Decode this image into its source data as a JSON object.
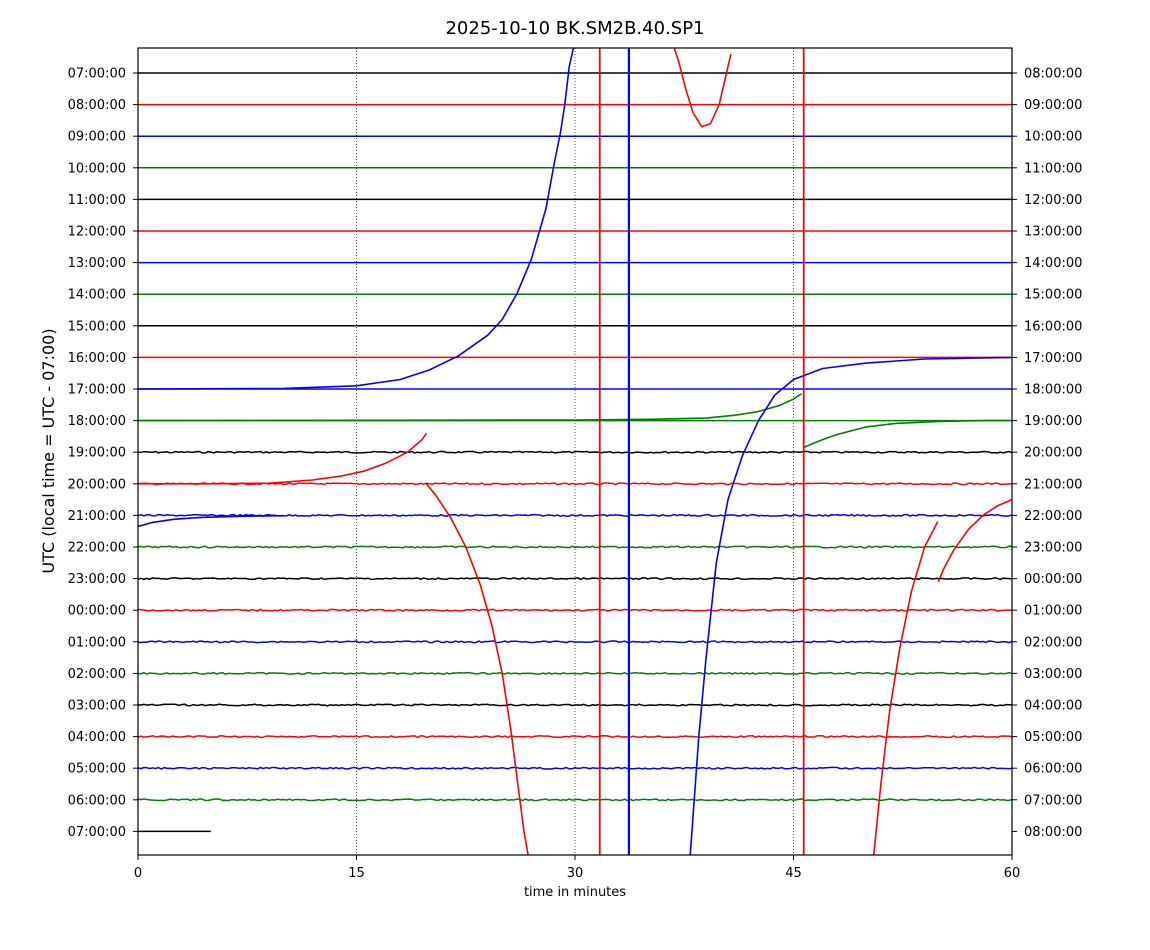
{
  "chart_data": {
    "type": "line",
    "title": "2025-10-10 BK.SM2B.40.SP1",
    "xlabel": "time in minutes",
    "ylabel": "UTC (local time = UTC - 07:00)",
    "xlim": [
      0,
      60
    ],
    "x_ticks": [
      0,
      15,
      30,
      45,
      60
    ],
    "x_grid": "dotted vertical at each tick",
    "left_tick_labels": [
      "07:00:00",
      "08:00:00",
      "09:00:00",
      "10:00:00",
      "11:00:00",
      "12:00:00",
      "13:00:00",
      "14:00:00",
      "15:00:00",
      "16:00:00",
      "17:00:00",
      "18:00:00",
      "19:00:00",
      "20:00:00",
      "21:00:00",
      "22:00:00",
      "23:00:00",
      "00:00:00",
      "01:00:00",
      "02:00:00",
      "03:00:00",
      "04:00:00",
      "05:00:00",
      "06:00:00",
      "07:00:00"
    ],
    "right_tick_labels": [
      "08:00:00",
      "09:00:00",
      "10:00:00",
      "11:00:00",
      "12:00:00",
      "13:00:00",
      "14:00:00",
      "15:00:00",
      "16:00:00",
      "17:00:00",
      "18:00:00",
      "19:00:00",
      "20:00:00",
      "21:00:00",
      "22:00:00",
      "23:00:00",
      "00:00:00",
      "01:00:00",
      "02:00:00",
      "03:00:00",
      "04:00:00",
      "05:00:00",
      "06:00:00",
      "07:00:00",
      "08:00:00"
    ],
    "trace_colors": [
      "#000000",
      "#ff0000",
      "#0000ff",
      "#008000"
    ],
    "baseline_end_minute": [
      60,
      60,
      60,
      60,
      60,
      60,
      60,
      60,
      60,
      60,
      60,
      60,
      60,
      60,
      60,
      60,
      60,
      60,
      60,
      60,
      60,
      60,
      60,
      60,
      5.5
    ],
    "noisy_rows_from": 12,
    "vertical_events": [
      {
        "minute": 31.7,
        "color": "#ff0000"
      },
      {
        "minute": 33.7,
        "color": "#0000ff"
      },
      {
        "minute": 45.7,
        "color": "#ff0000"
      }
    ],
    "event_curves": [
      {
        "name": "blue rising curve",
        "color": "#0000ff",
        "points": [
          [
            0,
            10
          ],
          [
            10,
            9.98
          ],
          [
            15,
            9.9
          ],
          [
            18,
            9.7
          ],
          [
            20,
            9.4
          ],
          [
            22,
            8.95
          ],
          [
            24,
            8.3
          ],
          [
            25,
            7.8
          ],
          [
            26,
            7.0
          ],
          [
            27,
            5.9
          ],
          [
            28,
            4.3
          ],
          [
            28.6,
            2.8
          ],
          [
            29,
            1.9
          ],
          [
            29.3,
            1.0
          ],
          [
            29.6,
            -0.2
          ],
          [
            29.9,
            -0.8
          ]
        ]
      },
      {
        "name": "red arc top",
        "color": "#ff0000",
        "points": [
          [
            36.8,
            -0.8
          ],
          [
            37.1,
            -0.4
          ],
          [
            37.6,
            0.5
          ],
          [
            38.1,
            1.25
          ],
          [
            38.7,
            1.7
          ],
          [
            39.3,
            1.6
          ],
          [
            39.9,
            1.0
          ],
          [
            40.4,
            0.0
          ],
          [
            40.7,
            -0.6
          ]
        ]
      },
      {
        "name": "green step before offset",
        "color": "#008000",
        "points": [
          [
            0,
            11
          ],
          [
            30,
            10.98
          ],
          [
            35,
            10.96
          ],
          [
            39,
            10.92
          ],
          [
            41,
            10.83
          ],
          [
            42.5,
            10.72
          ],
          [
            44,
            10.53
          ],
          [
            45,
            10.32
          ],
          [
            45.55,
            10.15
          ]
        ]
      },
      {
        "name": "green step after offset",
        "color": "#008000",
        "points": [
          [
            45.7,
            11.85
          ],
          [
            46.2,
            11.75
          ],
          [
            47,
            11.6
          ],
          [
            48,
            11.44
          ],
          [
            50,
            11.2
          ],
          [
            52,
            11.09
          ],
          [
            55,
            11.03
          ],
          [
            58,
            11.0
          ],
          [
            60,
            11.0
          ]
        ]
      },
      {
        "name": "blue recovery curve",
        "color": "#0000ff",
        "points": [
          [
            37.9,
            24.8
          ],
          [
            38.5,
            21.0
          ],
          [
            39,
            18.5
          ],
          [
            39.7,
            15.5
          ],
          [
            40.5,
            13.5
          ],
          [
            41.5,
            12.1
          ],
          [
            42.6,
            11.0
          ],
          [
            43.7,
            10.2
          ],
          [
            45,
            9.7
          ],
          [
            47,
            9.35
          ],
          [
            50,
            9.18
          ],
          [
            54,
            9.05
          ],
          [
            60,
            9.0
          ]
        ]
      },
      {
        "name": "red curve segment 1",
        "color": "#ff0000",
        "points": [
          [
            0,
            13
          ],
          [
            5,
            13
          ],
          [
            9,
            12.98
          ],
          [
            12,
            12.88
          ],
          [
            14,
            12.75
          ],
          [
            15.5,
            12.6
          ],
          [
            17,
            12.35
          ],
          [
            18.5,
            12.0
          ],
          [
            19.5,
            11.6
          ],
          [
            19.8,
            11.4
          ]
        ]
      },
      {
        "name": "red curve segment 2",
        "color": "#ff0000",
        "points": [
          [
            19.8,
            13
          ],
          [
            20.5,
            13.4
          ],
          [
            21.5,
            14.1
          ],
          [
            22.5,
            15.0
          ],
          [
            23.5,
            16.2
          ],
          [
            24.3,
            17.5
          ],
          [
            25,
            19.0
          ],
          [
            25.6,
            20.8
          ],
          [
            26.1,
            22.6
          ],
          [
            26.5,
            24.0
          ],
          [
            26.8,
            24.8
          ]
        ]
      },
      {
        "name": "red curve segment 3",
        "color": "#ff0000",
        "points": [
          [
            50.5,
            24.8
          ],
          [
            51,
            22.5
          ],
          [
            51.6,
            20.2
          ],
          [
            52.3,
            18.2
          ],
          [
            53.1,
            16.4
          ],
          [
            54,
            15.0
          ],
          [
            54.9,
            14.2
          ]
        ]
      },
      {
        "name": "red curve segment 4",
        "color": "#ff0000",
        "points": [
          [
            54.95,
            16.1
          ],
          [
            55.3,
            15.7
          ],
          [
            56,
            15.1
          ],
          [
            57,
            14.45
          ],
          [
            58,
            14.0
          ],
          [
            59,
            13.7
          ],
          [
            60,
            13.5
          ]
        ]
      },
      {
        "name": "blue row start bend",
        "color": "#0000ff",
        "points": [
          [
            0,
            14.35
          ],
          [
            1,
            14.22
          ],
          [
            2.5,
            14.12
          ],
          [
            4.5,
            14.06
          ],
          [
            7,
            14.03
          ],
          [
            10,
            14.01
          ]
        ]
      }
    ]
  }
}
